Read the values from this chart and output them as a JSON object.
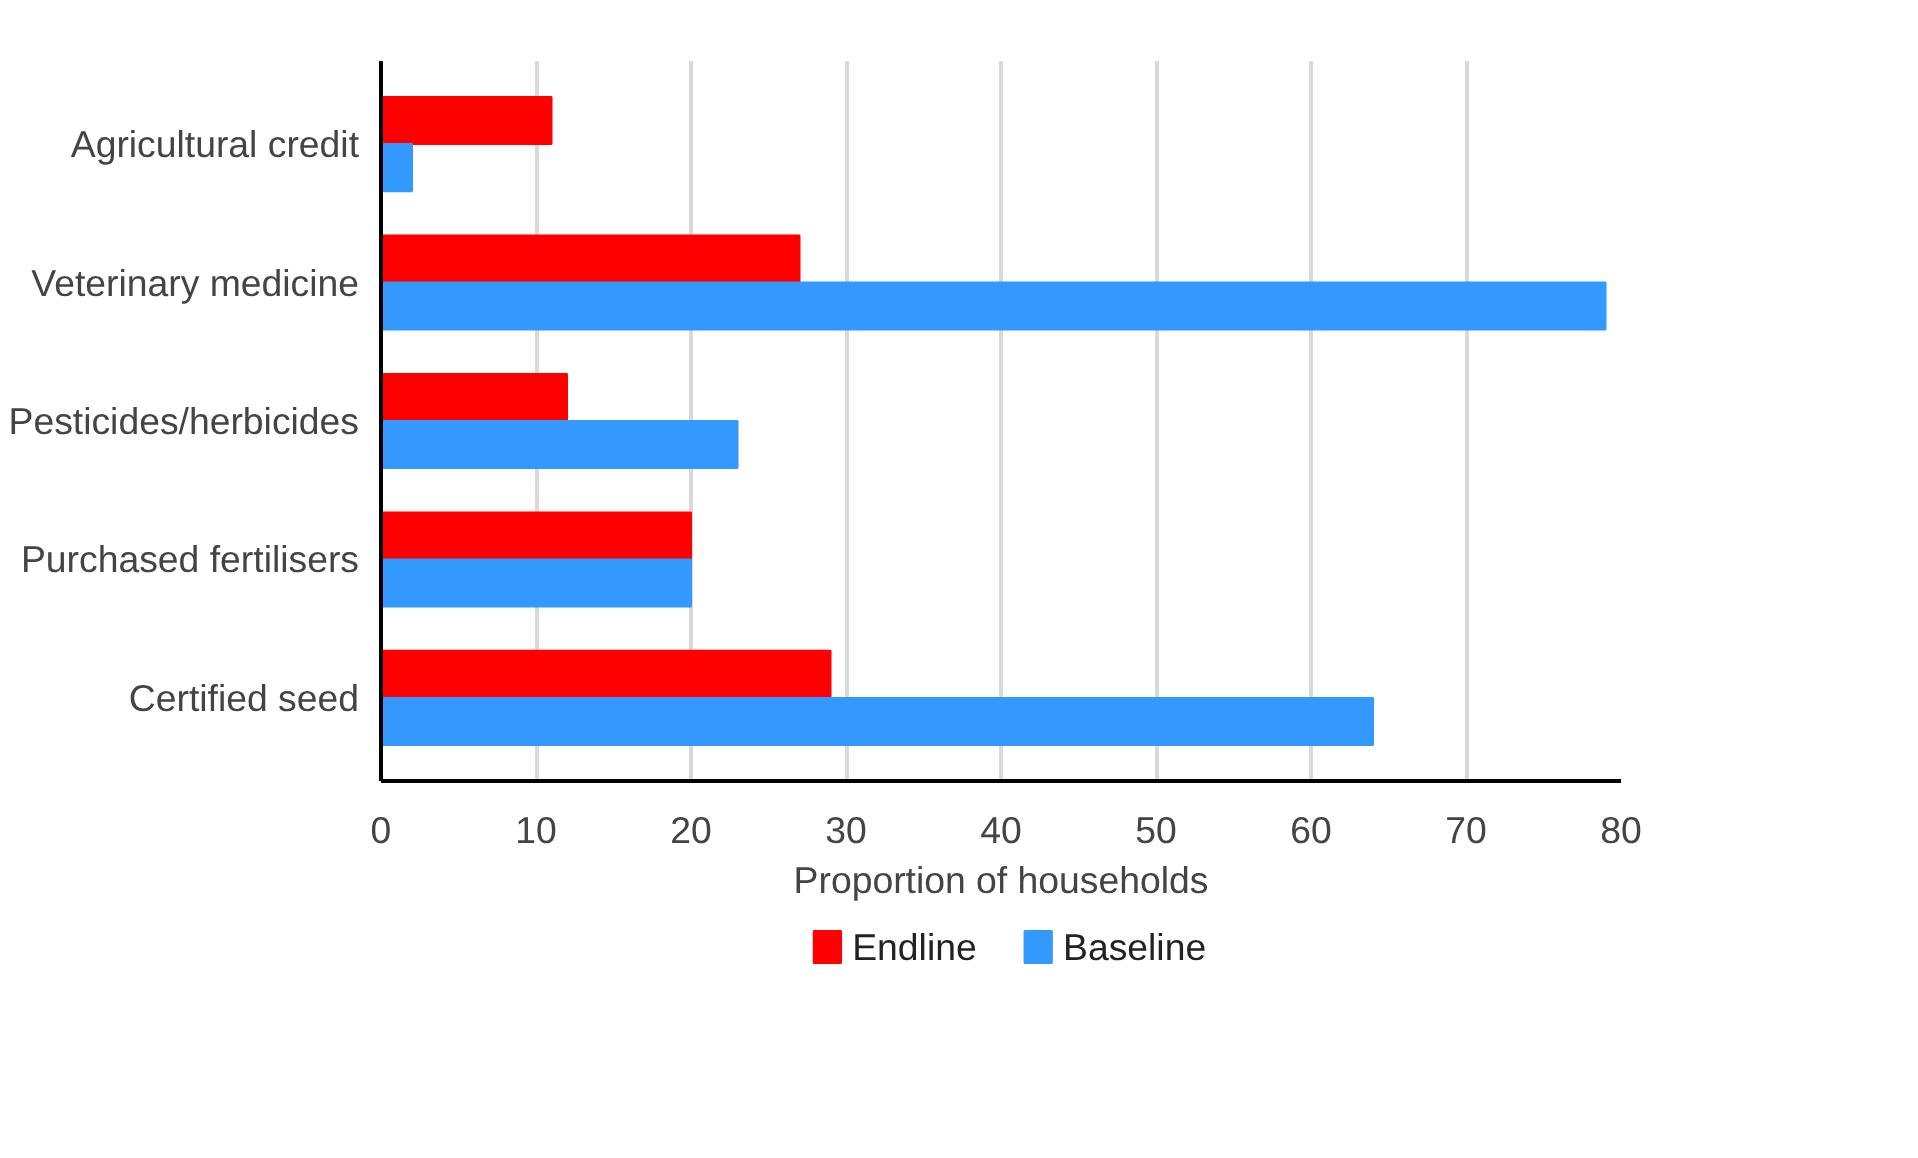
{
  "chart_data": {
    "type": "bar",
    "orientation": "horizontal",
    "xlabel": "Proportion of households",
    "categories": [
      "Agricultural credit",
      "Veterinary medicine",
      "Pesticides/herbicides",
      "Purchased fertilisers",
      "Certified seed"
    ],
    "series": [
      {
        "name": "Endline",
        "color": "#ff0000",
        "values": [
          11,
          27,
          12,
          20,
          29
        ]
      },
      {
        "name": "Baseline",
        "color": "#3399ff",
        "values": [
          2,
          79,
          23,
          20,
          64
        ]
      }
    ],
    "xlim": [
      0,
      80
    ],
    "xticks": [
      0,
      10,
      20,
      30,
      40,
      50,
      60,
      70,
      80
    ],
    "grid": "x",
    "legend": "bottom"
  }
}
